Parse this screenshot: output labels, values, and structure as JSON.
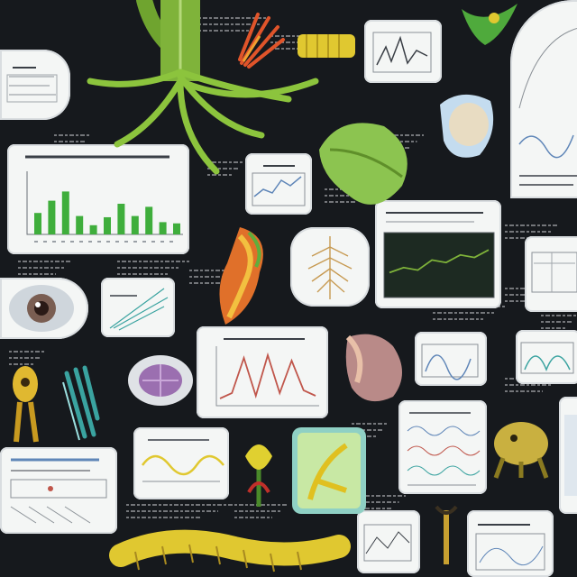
{
  "scene": {
    "background": "#16191d",
    "text_legible": false
  },
  "palette": {
    "card": "#f4f6f5",
    "ink": "#3a3f46",
    "chalk": "#c9ccd0",
    "leaf_green": "#7fb33a",
    "bar_green": "#3fae3c",
    "chart_red": "#c0564b",
    "chart_blue": "#5f86b8",
    "organ_orange": "#e0702a",
    "yellow": "#e0c830",
    "purple": "#9b6fb0",
    "teal": "#3aa3a0"
  },
  "bar_panel": {
    "bar_levels": [
      0.35,
      0.55,
      0.7,
      0.3,
      0.15,
      0.28,
      0.5,
      0.3,
      0.45,
      0.2,
      0.18
    ]
  },
  "peak_panel": {
    "levels": [
      0.1,
      0.2,
      0.85,
      0.15,
      0.9,
      0.2,
      0.8,
      0.25,
      0.15
    ]
  },
  "monitor_panel": {
    "levels": [
      0.35,
      0.45,
      0.4,
      0.6,
      0.55,
      0.7,
      0.65,
      0.8
    ]
  },
  "illustrations": [
    "plant-stem-roots",
    "red-orange-flower",
    "yellow-seed-pod",
    "green-leaf",
    "brain-organ",
    "orange-tissue-organ",
    "root-system",
    "eye-organ",
    "purple-cell-cluster",
    "teal-plant",
    "yellow-creature",
    "stomach-organ",
    "yellow-creature-right",
    "yellow-caterpillar",
    "small-seedling"
  ]
}
